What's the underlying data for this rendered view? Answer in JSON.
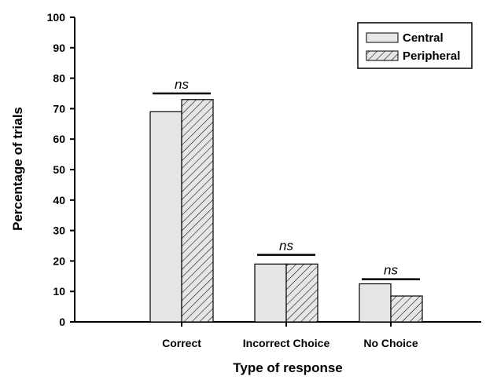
{
  "chart_data": {
    "type": "bar",
    "categories": [
      "Correct",
      "Incorrect Choice",
      "No Choice"
    ],
    "series": [
      {
        "name": "Central",
        "values": [
          69,
          19,
          12.5
        ],
        "color": "#e6e6e6",
        "pattern": "solid"
      },
      {
        "name": "Peripheral",
        "values": [
          73,
          19,
          8.5
        ],
        "color": "#e6e6e6",
        "pattern": "diagonal-hatch"
      }
    ],
    "xlabel": "Type of response",
    "ylabel": "Percentage of trials",
    "ylim": [
      0,
      100
    ],
    "yticks": [
      "0",
      "10",
      "20",
      "30",
      "40",
      "50",
      "60",
      "70",
      "80",
      "90",
      "100"
    ],
    "grid": false,
    "legend_position": "top-right",
    "annotations": [
      {
        "text": "ns",
        "category": "Correct",
        "y": 75
      },
      {
        "text": "ns",
        "category": "Incorrect Choice",
        "y": 22
      },
      {
        "text": "ns",
        "category": "No Choice",
        "y": 14
      }
    ]
  }
}
